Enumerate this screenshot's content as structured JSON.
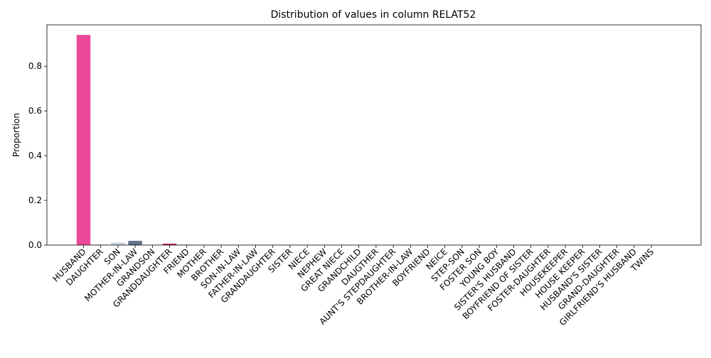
{
  "chart_data": {
    "type": "bar",
    "title": "Distribution of values in column RELAT52",
    "xlabel": "",
    "ylabel": "Proportion",
    "ylim": [
      0,
      0.985
    ],
    "yticks": [
      0.0,
      0.2,
      0.4,
      0.6,
      0.8
    ],
    "ytick_labels": [
      "0.0",
      "0.2",
      "0.4",
      "0.6",
      "0.8"
    ],
    "grid": false,
    "legend": "none",
    "categories": [
      "HUSBAND",
      "DAUGHTER",
      "SON",
      "MOTHER-IN-LAW",
      "GRANDSON",
      "GRANDDAUGHTER",
      "FRIEND",
      "MOTHER",
      "BROTHER",
      "SON-IN-LAW",
      "FATHER-IN-LAW",
      "GRANDAUGHTER",
      "SISTER",
      "NIECE",
      "NEPHEW",
      "GREAT NIECE",
      "GRANDCHILD",
      "DAUGTHER",
      "AUNT'S STEPDAUGHTER",
      "BROTHER-IN-LAW",
      "BOYFRIEND",
      "NEICE",
      "STEP-SON",
      "FOSTER SON",
      "YOUNG BOY",
      "SISTER'S HUSBAND",
      "BOYFRIEND OF SISTER",
      "FOSTER-DAUGHTER",
      "HOUSEKEEPER",
      "HOUSE KEEPER",
      "HUSBAND'S SISTER",
      "GRAND-DAUGHTER",
      "GIRLFRIEND'S HUSBAND",
      "TWINS"
    ],
    "values": [
      0.94,
      0.003,
      0.011,
      0.019,
      0.001,
      0.006,
      0.004,
      0.001,
      0.0007,
      0.0007,
      0.0005,
      0.0005,
      0.0004,
      0.0004,
      0.0003,
      0.0003,
      0.0002,
      0.0002,
      0.0002,
      0.0002,
      0.0002,
      0.0002,
      0.0002,
      0.0002,
      0.0002,
      0.0002,
      0.0002,
      0.0002,
      0.0002,
      0.0002,
      0.0002,
      0.0002,
      0.0002,
      0.0002
    ],
    "colors": [
      "#ec4899",
      "#fbcfe8",
      "#cbd5e1",
      "#64748b",
      "#f3e8ee",
      "#be185d",
      "#f9d5e5",
      "#e5e7eb",
      "#e5e7eb",
      "#e5e7eb",
      "#e5e7eb",
      "#e5e7eb",
      "#e5e7eb",
      "#e5e7eb",
      "#e5e7eb",
      "#e5e7eb",
      "#e5e7eb",
      "#e5e7eb",
      "#e5e7eb",
      "#e5e7eb",
      "#e5e7eb",
      "#e5e7eb",
      "#e5e7eb",
      "#e5e7eb",
      "#e5e7eb",
      "#e5e7eb",
      "#e5e7eb",
      "#e5e7eb",
      "#e5e7eb",
      "#e5e7eb",
      "#e5e7eb",
      "#e5e7eb",
      "#e5e7eb",
      "#e5e7eb"
    ]
  }
}
